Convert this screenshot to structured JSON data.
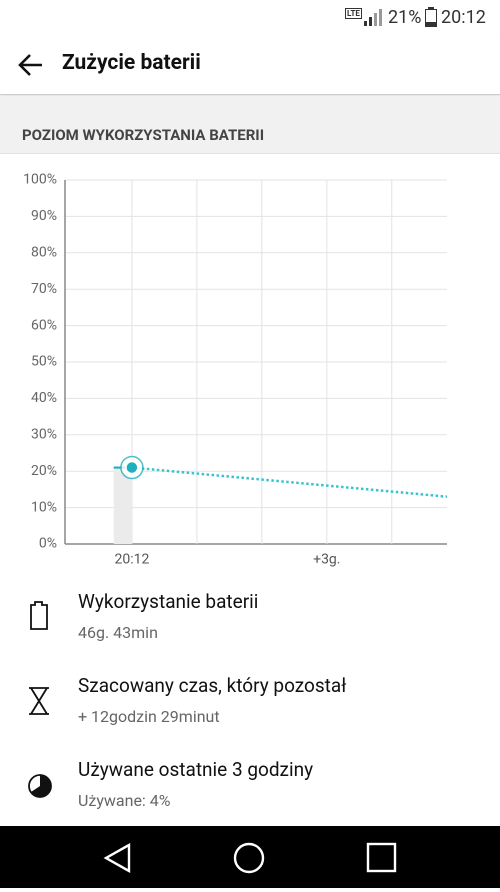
{
  "status_bar": {
    "network": "LTE",
    "battery": "21%",
    "time": "20:12"
  },
  "header": {
    "title": "Zużycie baterii"
  },
  "section": {
    "title": "POZIOM WYKORZYSTANIA BATERII"
  },
  "chart_data": {
    "type": "line",
    "series": [
      {
        "color": "#1fb0bf",
        "style": "solid",
        "area_color": "#ebebeb",
        "x": [
          -0.28,
          0
        ],
        "values": [
          21,
          21
        ]
      },
      {
        "color": "#37c3cf",
        "style": "dotted",
        "x": [
          0,
          4.85
        ],
        "values": [
          21,
          13
        ]
      }
    ],
    "xlim": [
      -1.03,
      4.85
    ],
    "xticks": [
      {
        "value": 0,
        "label": "20:12"
      },
      {
        "value": 1,
        "label": null
      },
      {
        "value": 2,
        "label": null
      },
      {
        "value": 3,
        "label": "+3g."
      },
      {
        "value": 4,
        "label": null
      }
    ],
    "ylim": [
      0,
      100
    ],
    "yticks": [
      {
        "value": 0,
        "label": "0%"
      },
      {
        "value": 10,
        "label": "10%"
      },
      {
        "value": 20,
        "label": "20%"
      },
      {
        "value": 30,
        "label": "30%"
      },
      {
        "value": 40,
        "label": "40%"
      },
      {
        "value": 50,
        "label": "50%"
      },
      {
        "value": 60,
        "label": "60%"
      },
      {
        "value": 70,
        "label": "70%"
      },
      {
        "value": 80,
        "label": "80%"
      },
      {
        "value": 90,
        "label": "90%"
      },
      {
        "value": 100,
        "label": "100%"
      }
    ],
    "grid": true
  },
  "items": [
    {
      "title": "Wykorzystanie baterii",
      "subtitle": "46g. 43min"
    },
    {
      "title": "Szacowany czas, który pozostał",
      "subtitle": "+ 12godzin 29minut"
    },
    {
      "title": "Używane ostatnie 3 godziny",
      "subtitle": "Używane: 4%"
    }
  ]
}
